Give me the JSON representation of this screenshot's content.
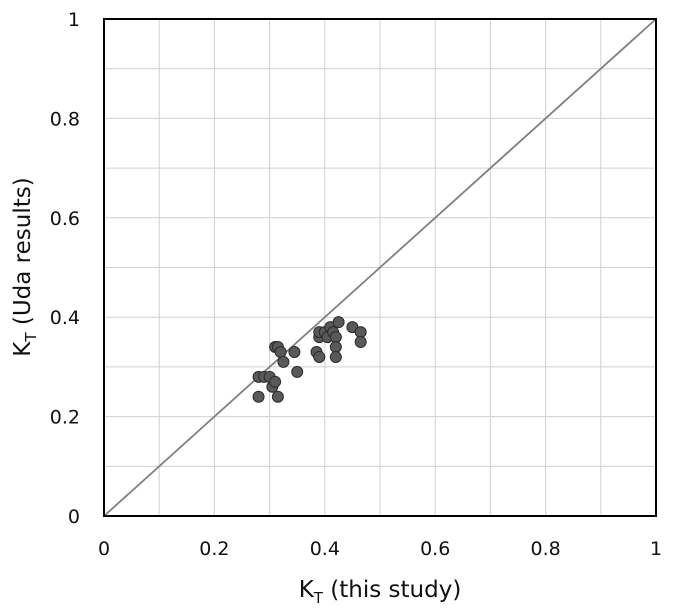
{
  "chart_data": {
    "type": "scatter",
    "xlabel": {
      "main": "K",
      "sub": "T",
      "rest": " (this study)"
    },
    "ylabel": {
      "main": "K",
      "sub": "T",
      "rest": " (Uda results)"
    },
    "xlim": [
      0,
      1
    ],
    "ylim": [
      0,
      1
    ],
    "x_ticks": [
      "0",
      "0.2",
      "0.4",
      "0.6",
      "0.8",
      "1"
    ],
    "y_ticks": [
      "0",
      "0.2",
      "0.4",
      "0.6",
      "0.8",
      "1"
    ],
    "grid": true,
    "minor_grid_step": 0.1,
    "reference_line": {
      "type": "y=x",
      "from": [
        0,
        0
      ],
      "to": [
        1,
        1
      ]
    },
    "colors": {
      "points": "#595959",
      "point_edge": "#2b2b2b",
      "line": "#808080",
      "grid": "#d0d0d0",
      "frame": "#000000"
    },
    "points": [
      {
        "x": 0.28,
        "y": 0.28
      },
      {
        "x": 0.29,
        "y": 0.28
      },
      {
        "x": 0.3,
        "y": 0.28
      },
      {
        "x": 0.28,
        "y": 0.24
      },
      {
        "x": 0.305,
        "y": 0.26
      },
      {
        "x": 0.31,
        "y": 0.27
      },
      {
        "x": 0.315,
        "y": 0.24
      },
      {
        "x": 0.31,
        "y": 0.34
      },
      {
        "x": 0.315,
        "y": 0.34
      },
      {
        "x": 0.32,
        "y": 0.33
      },
      {
        "x": 0.325,
        "y": 0.31
      },
      {
        "x": 0.345,
        "y": 0.33
      },
      {
        "x": 0.35,
        "y": 0.29
      },
      {
        "x": 0.385,
        "y": 0.33
      },
      {
        "x": 0.39,
        "y": 0.32
      },
      {
        "x": 0.39,
        "y": 0.36
      },
      {
        "x": 0.39,
        "y": 0.37
      },
      {
        "x": 0.4,
        "y": 0.37
      },
      {
        "x": 0.405,
        "y": 0.36
      },
      {
        "x": 0.41,
        "y": 0.38
      },
      {
        "x": 0.415,
        "y": 0.37
      },
      {
        "x": 0.42,
        "y": 0.36
      },
      {
        "x": 0.42,
        "y": 0.34
      },
      {
        "x": 0.42,
        "y": 0.32
      },
      {
        "x": 0.425,
        "y": 0.39
      },
      {
        "x": 0.45,
        "y": 0.38
      },
      {
        "x": 0.465,
        "y": 0.37
      },
      {
        "x": 0.465,
        "y": 0.35
      }
    ]
  }
}
